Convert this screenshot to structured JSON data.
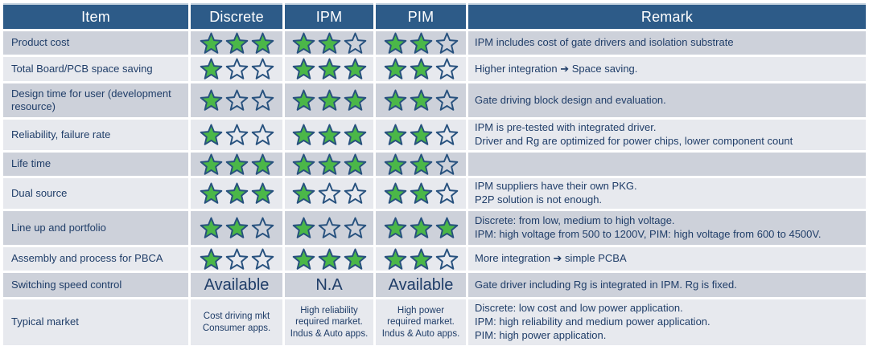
{
  "colors": {
    "header_bg": "#2d5b88",
    "header_text": "#ffffff",
    "row_dark": "#cdd1da",
    "row_light": "#e7e9ee",
    "text_navy": "#1f3d68",
    "star_green": "#4bb748",
    "star_outline": "#27517e"
  },
  "table": {
    "headers": [
      "Item",
      "Discrete",
      "IPM",
      "PIM",
      "Remark"
    ],
    "rows": [
      {
        "item": "Product cost",
        "discrete": {
          "kind": "stars",
          "filled": 3,
          "total": 3
        },
        "ipm": {
          "kind": "stars",
          "filled": 2,
          "total": 3
        },
        "pim": {
          "kind": "stars",
          "filled": 2,
          "total": 3
        },
        "remark": [
          "IPM includes cost of gate drivers and isolation substrate"
        ]
      },
      {
        "item": "Total Board/PCB space saving",
        "discrete": {
          "kind": "stars",
          "filled": 1,
          "total": 3
        },
        "ipm": {
          "kind": "stars",
          "filled": 3,
          "total": 3
        },
        "pim": {
          "kind": "stars",
          "filled": 2,
          "total": 3
        },
        "remark": [
          "Higher integration ➔ Space saving."
        ]
      },
      {
        "item": "Design time for user (development resource)",
        "discrete": {
          "kind": "stars",
          "filled": 1,
          "total": 3
        },
        "ipm": {
          "kind": "stars",
          "filled": 3,
          "total": 3
        },
        "pim": {
          "kind": "stars",
          "filled": 2,
          "total": 3
        },
        "remark": [
          "Gate driving block design and evaluation."
        ]
      },
      {
        "item": "Reliability, failure rate",
        "discrete": {
          "kind": "stars",
          "filled": 1,
          "total": 3
        },
        "ipm": {
          "kind": "stars",
          "filled": 3,
          "total": 3
        },
        "pim": {
          "kind": "stars",
          "filled": 2,
          "total": 3
        },
        "remark": [
          "IPM is pre-tested with integrated driver.",
          "Driver and Rg are optimized for power chips, lower component count"
        ]
      },
      {
        "item": "Life time",
        "discrete": {
          "kind": "stars",
          "filled": 3,
          "total": 3
        },
        "ipm": {
          "kind": "stars",
          "filled": 3,
          "total": 3
        },
        "pim": {
          "kind": "stars",
          "filled": 2,
          "total": 3
        },
        "remark": []
      },
      {
        "item": "Dual source",
        "discrete": {
          "kind": "stars",
          "filled": 3,
          "total": 3
        },
        "ipm": {
          "kind": "stars",
          "filled": 1,
          "total": 3
        },
        "pim": {
          "kind": "stars",
          "filled": 2,
          "total": 3
        },
        "remark": [
          "IPM suppliers have their own PKG.",
          "P2P solution is not enough."
        ]
      },
      {
        "item": "Line up and portfolio",
        "discrete": {
          "kind": "stars",
          "filled": 2,
          "total": 3
        },
        "ipm": {
          "kind": "stars",
          "filled": 1,
          "total": 3
        },
        "pim": {
          "kind": "stars",
          "filled": 3,
          "total": 3
        },
        "remark": [
          "Discrete: from low, medium to high voltage.",
          "IPM: high voltage from 500 to 1200V, PIM: high voltage from 600 to 4500V."
        ]
      },
      {
        "item": "Assembly and process for PBCA",
        "discrete": {
          "kind": "stars",
          "filled": 1,
          "total": 3
        },
        "ipm": {
          "kind": "stars",
          "filled": 3,
          "total": 3
        },
        "pim": {
          "kind": "stars",
          "filled": 2,
          "total": 3
        },
        "remark": [
          "More integration ➔ simple PCBA"
        ]
      },
      {
        "item": "Switching speed control",
        "discrete": {
          "kind": "bigtext",
          "text": "Available"
        },
        "ipm": {
          "kind": "bigtext",
          "text": "N.A"
        },
        "pim": {
          "kind": "bigtext",
          "text": "Available"
        },
        "remark": [
          "Gate driver including Rg is integrated in IPM.  Rg is fixed."
        ]
      },
      {
        "item": "Typical market",
        "discrete": {
          "kind": "smalltext",
          "lines": [
            "Cost driving mkt",
            "Consumer apps."
          ]
        },
        "ipm": {
          "kind": "smalltext",
          "lines": [
            "High reliability",
            "required market.",
            "Indus & Auto apps."
          ]
        },
        "pim": {
          "kind": "smalltext",
          "lines": [
            "High power",
            "required market.",
            "Indus & Auto apps."
          ]
        },
        "remark": [
          "Discrete: low cost and low power application.",
          "IPM: high reliability and medium power application.",
          "PIM: high power application."
        ]
      }
    ]
  }
}
